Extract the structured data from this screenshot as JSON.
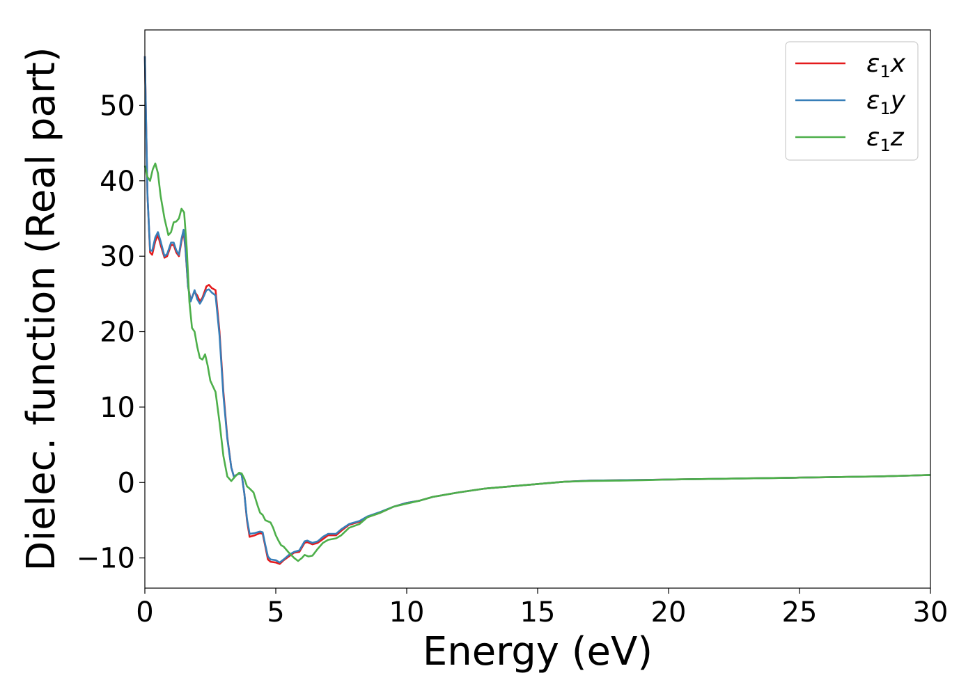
{
  "chart_data": {
    "type": "line",
    "title": "",
    "xlabel": "Energy (eV)",
    "ylabel": "Dielec. function (Real part)",
    "xlim": [
      0,
      30
    ],
    "ylim": [
      -14,
      60
    ],
    "xticks": [
      0,
      5,
      10,
      15,
      20,
      25,
      30
    ],
    "xtick_labels": [
      "0",
      "5",
      "10",
      "15",
      "20",
      "25",
      "30"
    ],
    "yticks": [
      -10,
      0,
      10,
      20,
      30,
      40,
      50
    ],
    "ytick_labels": [
      "−10",
      "0",
      "10",
      "20",
      "30",
      "40",
      "50"
    ],
    "grid": false,
    "legend_position": "top-right",
    "series": [
      {
        "name": "x",
        "legend_symbol": "ε",
        "legend_subscript": "1",
        "color": "#e41a1c",
        "points": [
          [
            0,
            56.5
          ],
          [
            0.1,
            38
          ],
          [
            0.2,
            30.5
          ],
          [
            0.28,
            30.2
          ],
          [
            0.4,
            32
          ],
          [
            0.5,
            32.8
          ],
          [
            0.6,
            31.5
          ],
          [
            0.75,
            29.8
          ],
          [
            0.85,
            30
          ],
          [
            1.0,
            31.5
          ],
          [
            1.1,
            31.5
          ],
          [
            1.2,
            30.5
          ],
          [
            1.3,
            30
          ],
          [
            1.4,
            32
          ],
          [
            1.48,
            33.2
          ],
          [
            1.55,
            31
          ],
          [
            1.65,
            26
          ],
          [
            1.75,
            24.2
          ],
          [
            1.9,
            25.3
          ],
          [
            2.0,
            24.8
          ],
          [
            2.1,
            24
          ],
          [
            2.2,
            24.5
          ],
          [
            2.35,
            26
          ],
          [
            2.45,
            26.2
          ],
          [
            2.55,
            25.8
          ],
          [
            2.7,
            25.5
          ],
          [
            2.85,
            20
          ],
          [
            3.0,
            12
          ],
          [
            3.15,
            6
          ],
          [
            3.3,
            2
          ],
          [
            3.4,
            0.8
          ],
          [
            3.5,
            1
          ],
          [
            3.6,
            1.2
          ],
          [
            3.7,
            1
          ],
          [
            3.8,
            -1.5
          ],
          [
            3.9,
            -5
          ],
          [
            4.0,
            -7.2
          ],
          [
            4.2,
            -7
          ],
          [
            4.4,
            -6.7
          ],
          [
            4.5,
            -6.8
          ],
          [
            4.6,
            -8.5
          ],
          [
            4.7,
            -10.2
          ],
          [
            4.8,
            -10.5
          ],
          [
            5.0,
            -10.6
          ],
          [
            5.15,
            -10.8
          ],
          [
            5.3,
            -10.3
          ],
          [
            5.5,
            -9.8
          ],
          [
            5.7,
            -9.3
          ],
          [
            5.9,
            -9.2
          ],
          [
            6.1,
            -8
          ],
          [
            6.2,
            -7.9
          ],
          [
            6.4,
            -8.2
          ],
          [
            6.6,
            -8
          ],
          [
            6.8,
            -7.5
          ],
          [
            7.0,
            -7
          ],
          [
            7.3,
            -7
          ],
          [
            7.5,
            -6.4
          ],
          [
            7.8,
            -5.6
          ],
          [
            8.2,
            -5.2
          ],
          [
            8.5,
            -4.6
          ],
          [
            9.0,
            -4
          ],
          [
            9.5,
            -3.2
          ],
          [
            10.0,
            -2.7
          ],
          [
            10.5,
            -2.4
          ],
          [
            11.0,
            -1.9
          ],
          [
            12.0,
            -1.3
          ],
          [
            13.0,
            -0.8
          ],
          [
            14.0,
            -0.5
          ],
          [
            15.0,
            -0.2
          ],
          [
            16.0,
            0.1
          ],
          [
            17.0,
            0.25
          ],
          [
            18.0,
            0.3
          ],
          [
            19.0,
            0.35
          ],
          [
            20.0,
            0.4
          ],
          [
            21.0,
            0.45
          ],
          [
            22.0,
            0.5
          ],
          [
            23.0,
            0.55
          ],
          [
            24.0,
            0.6
          ],
          [
            25.0,
            0.65
          ],
          [
            26.0,
            0.7
          ],
          [
            27.0,
            0.75
          ],
          [
            28.0,
            0.8
          ],
          [
            29.0,
            0.9
          ],
          [
            30.0,
            1.0
          ]
        ]
      },
      {
        "name": "y",
        "legend_symbol": "ε",
        "legend_subscript": "1",
        "color": "#377eb8",
        "points": [
          [
            0,
            56.5
          ],
          [
            0.1,
            38
          ],
          [
            0.2,
            30.8
          ],
          [
            0.28,
            30.7
          ],
          [
            0.4,
            32.5
          ],
          [
            0.5,
            33.2
          ],
          [
            0.6,
            32
          ],
          [
            0.75,
            30
          ],
          [
            0.85,
            30.3
          ],
          [
            1.0,
            31.8
          ],
          [
            1.1,
            31.8
          ],
          [
            1.2,
            30.8
          ],
          [
            1.3,
            30.2
          ],
          [
            1.4,
            32.3
          ],
          [
            1.48,
            33.5
          ],
          [
            1.55,
            31.2
          ],
          [
            1.65,
            26
          ],
          [
            1.75,
            24
          ],
          [
            1.9,
            25.5
          ],
          [
            2.0,
            24.3
          ],
          [
            2.1,
            23.7
          ],
          [
            2.2,
            24.3
          ],
          [
            2.35,
            25.5
          ],
          [
            2.45,
            25.6
          ],
          [
            2.55,
            25.2
          ],
          [
            2.7,
            24.8
          ],
          [
            2.85,
            19.5
          ],
          [
            3.0,
            11.5
          ],
          [
            3.15,
            5.8
          ],
          [
            3.3,
            2
          ],
          [
            3.4,
            0.8
          ],
          [
            3.5,
            1
          ],
          [
            3.6,
            1.2
          ],
          [
            3.7,
            1
          ],
          [
            3.8,
            -1.5
          ],
          [
            3.9,
            -4.8
          ],
          [
            4.0,
            -6.8
          ],
          [
            4.2,
            -6.7
          ],
          [
            4.4,
            -6.5
          ],
          [
            4.5,
            -6.6
          ],
          [
            4.6,
            -8.3
          ],
          [
            4.7,
            -9.8
          ],
          [
            4.8,
            -10.2
          ],
          [
            5.0,
            -10.3
          ],
          [
            5.15,
            -10.6
          ],
          [
            5.3,
            -10.2
          ],
          [
            5.5,
            -9.6
          ],
          [
            5.7,
            -9.2
          ],
          [
            5.9,
            -9
          ],
          [
            6.1,
            -7.8
          ],
          [
            6.2,
            -7.7
          ],
          [
            6.4,
            -8
          ],
          [
            6.6,
            -7.8
          ],
          [
            6.8,
            -7.2
          ],
          [
            7.0,
            -6.8
          ],
          [
            7.3,
            -6.8
          ],
          [
            7.5,
            -6.2
          ],
          [
            7.8,
            -5.5
          ],
          [
            8.2,
            -5.1
          ],
          [
            8.5,
            -4.5
          ],
          [
            9.0,
            -3.9
          ],
          [
            9.5,
            -3.2
          ],
          [
            10.0,
            -2.7
          ],
          [
            10.5,
            -2.4
          ],
          [
            11.0,
            -1.9
          ],
          [
            12.0,
            -1.3
          ],
          [
            13.0,
            -0.8
          ],
          [
            14.0,
            -0.5
          ],
          [
            15.0,
            -0.2
          ],
          [
            16.0,
            0.1
          ],
          [
            17.0,
            0.25
          ],
          [
            18.0,
            0.3
          ],
          [
            19.0,
            0.35
          ],
          [
            20.0,
            0.4
          ],
          [
            21.0,
            0.45
          ],
          [
            22.0,
            0.5
          ],
          [
            23.0,
            0.55
          ],
          [
            24.0,
            0.6
          ],
          [
            25.0,
            0.65
          ],
          [
            26.0,
            0.7
          ],
          [
            27.0,
            0.75
          ],
          [
            28.0,
            0.8
          ],
          [
            29.0,
            0.9
          ],
          [
            30.0,
            1.0
          ]
        ]
      },
      {
        "name": "z",
        "legend_symbol": "ε",
        "legend_subscript": "1",
        "color": "#4daf4a",
        "points": [
          [
            0,
            42
          ],
          [
            0.1,
            40.5
          ],
          [
            0.2,
            40
          ],
          [
            0.3,
            41.5
          ],
          [
            0.4,
            42.3
          ],
          [
            0.5,
            41
          ],
          [
            0.6,
            38
          ],
          [
            0.75,
            35
          ],
          [
            0.9,
            32.8
          ],
          [
            1.0,
            33.2
          ],
          [
            1.1,
            34.5
          ],
          [
            1.2,
            34.6
          ],
          [
            1.3,
            35
          ],
          [
            1.4,
            36.3
          ],
          [
            1.5,
            35.8
          ],
          [
            1.6,
            31
          ],
          [
            1.7,
            24
          ],
          [
            1.8,
            20.5
          ],
          [
            1.9,
            20
          ],
          [
            2.0,
            18
          ],
          [
            2.1,
            16.5
          ],
          [
            2.2,
            16.3
          ],
          [
            2.3,
            17
          ],
          [
            2.4,
            15.5
          ],
          [
            2.5,
            13.5
          ],
          [
            2.7,
            12
          ],
          [
            2.85,
            8
          ],
          [
            3.0,
            3.5
          ],
          [
            3.15,
            0.8
          ],
          [
            3.3,
            0.2
          ],
          [
            3.45,
            0.8
          ],
          [
            3.6,
            1.3
          ],
          [
            3.7,
            1.2
          ],
          [
            3.8,
            0.5
          ],
          [
            3.9,
            -0.5
          ],
          [
            4.0,
            -0.8
          ],
          [
            4.15,
            -1.3
          ],
          [
            4.3,
            -3
          ],
          [
            4.4,
            -4
          ],
          [
            4.5,
            -4.3
          ],
          [
            4.6,
            -5
          ],
          [
            4.8,
            -5.3
          ],
          [
            4.9,
            -6
          ],
          [
            5.0,
            -7
          ],
          [
            5.1,
            -7.7
          ],
          [
            5.2,
            -8.3
          ],
          [
            5.3,
            -8.5
          ],
          [
            5.5,
            -9.3
          ],
          [
            5.7,
            -10
          ],
          [
            5.85,
            -10.4
          ],
          [
            6.0,
            -10
          ],
          [
            6.1,
            -9.6
          ],
          [
            6.25,
            -9.8
          ],
          [
            6.4,
            -9.7
          ],
          [
            6.6,
            -8.8
          ],
          [
            6.8,
            -8
          ],
          [
            7.0,
            -7.6
          ],
          [
            7.3,
            -7.4
          ],
          [
            7.5,
            -7
          ],
          [
            7.8,
            -6
          ],
          [
            8.2,
            -5.5
          ],
          [
            8.5,
            -4.6
          ],
          [
            9.0,
            -4
          ],
          [
            9.5,
            -3.2
          ],
          [
            10.0,
            -2.8
          ],
          [
            10.5,
            -2.4
          ],
          [
            11.0,
            -1.9
          ],
          [
            12.0,
            -1.3
          ],
          [
            13.0,
            -0.8
          ],
          [
            14.0,
            -0.5
          ],
          [
            15.0,
            -0.2
          ],
          [
            16.0,
            0.1
          ],
          [
            17.0,
            0.2
          ],
          [
            18.0,
            0.25
          ],
          [
            19.0,
            0.3
          ],
          [
            20.0,
            0.4
          ],
          [
            21.0,
            0.45
          ],
          [
            22.0,
            0.5
          ],
          [
            23.0,
            0.55
          ],
          [
            24.0,
            0.6
          ],
          [
            25.0,
            0.65
          ],
          [
            26.0,
            0.7
          ],
          [
            27.0,
            0.75
          ],
          [
            28.0,
            0.8
          ],
          [
            29.0,
            0.9
          ],
          [
            30.0,
            1.0
          ]
        ]
      }
    ]
  }
}
